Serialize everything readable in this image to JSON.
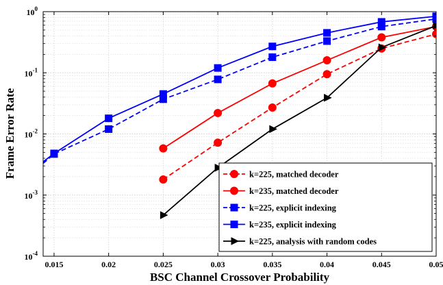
{
  "chart_data": {
    "type": "line",
    "xlabel": "BSC Channel Crossover Probability",
    "ylabel": "Frame Error Rate",
    "x_scale": "linear",
    "y_scale": "log",
    "xlim": [
      0.014,
      0.05
    ],
    "ylim": [
      0.0001,
      1
    ],
    "x_ticks": [
      0.015,
      0.02,
      0.025,
      0.03,
      0.035,
      0.04,
      0.045,
      0.05
    ],
    "x_tick_labels": [
      "0.015",
      "0.02",
      "0.025",
      "0.03",
      "0.035",
      "0.04",
      "0.045",
      "0.05"
    ],
    "y_ticks": [
      {
        "value": 0.0001,
        "base": "10",
        "exp": "-4"
      },
      {
        "value": 0.001,
        "base": "10",
        "exp": "-3"
      },
      {
        "value": 0.01,
        "base": "10",
        "exp": "-2"
      },
      {
        "value": 0.1,
        "base": "10",
        "exp": "-1"
      },
      {
        "value": 1,
        "base": "10",
        "exp": "0"
      }
    ],
    "grid": true,
    "legend_position": "bottom-right",
    "series": [
      {
        "name": "k=225, matched decoder",
        "color": "#ff0000",
        "line": "dashed",
        "marker": "circle",
        "x": [
          0.025,
          0.03,
          0.035,
          0.04,
          0.045,
          0.05
        ],
        "y": [
          0.0018,
          0.0072,
          0.027,
          0.095,
          0.25,
          0.43
        ]
      },
      {
        "name": "k=235, matched decoder",
        "color": "#ff0000",
        "line": "solid",
        "marker": "circle",
        "x": [
          0.025,
          0.03,
          0.035,
          0.04,
          0.045,
          0.05
        ],
        "y": [
          0.0058,
          0.022,
          0.067,
          0.16,
          0.38,
          0.57
        ]
      },
      {
        "name": "k=225, explicit indexing",
        "color": "#0000ff",
        "line": "dashed",
        "marker": "square",
        "x": [
          0.014,
          0.015,
          0.02,
          0.025,
          0.03,
          0.035,
          0.04,
          0.045,
          0.05
        ],
        "y": [
          0.0033,
          0.0047,
          0.012,
          0.037,
          0.078,
          0.18,
          0.33,
          0.57,
          0.76
        ]
      },
      {
        "name": "k=235, explicit indexing",
        "color": "#0000ff",
        "line": "solid",
        "marker": "square",
        "x": [
          0.014,
          0.015,
          0.02,
          0.025,
          0.03,
          0.035,
          0.04,
          0.045,
          0.05
        ],
        "y": [
          0.0035,
          0.0048,
          0.018,
          0.045,
          0.12,
          0.27,
          0.45,
          0.68,
          0.84
        ]
      },
      {
        "name": "k=225, analysis with random codes",
        "color": "#000000",
        "line": "solid",
        "marker": "triangle-right",
        "x": [
          0.025,
          0.03,
          0.035,
          0.04,
          0.045,
          0.05
        ],
        "y": [
          0.00047,
          0.0028,
          0.012,
          0.039,
          0.26,
          0.59
        ]
      }
    ]
  }
}
